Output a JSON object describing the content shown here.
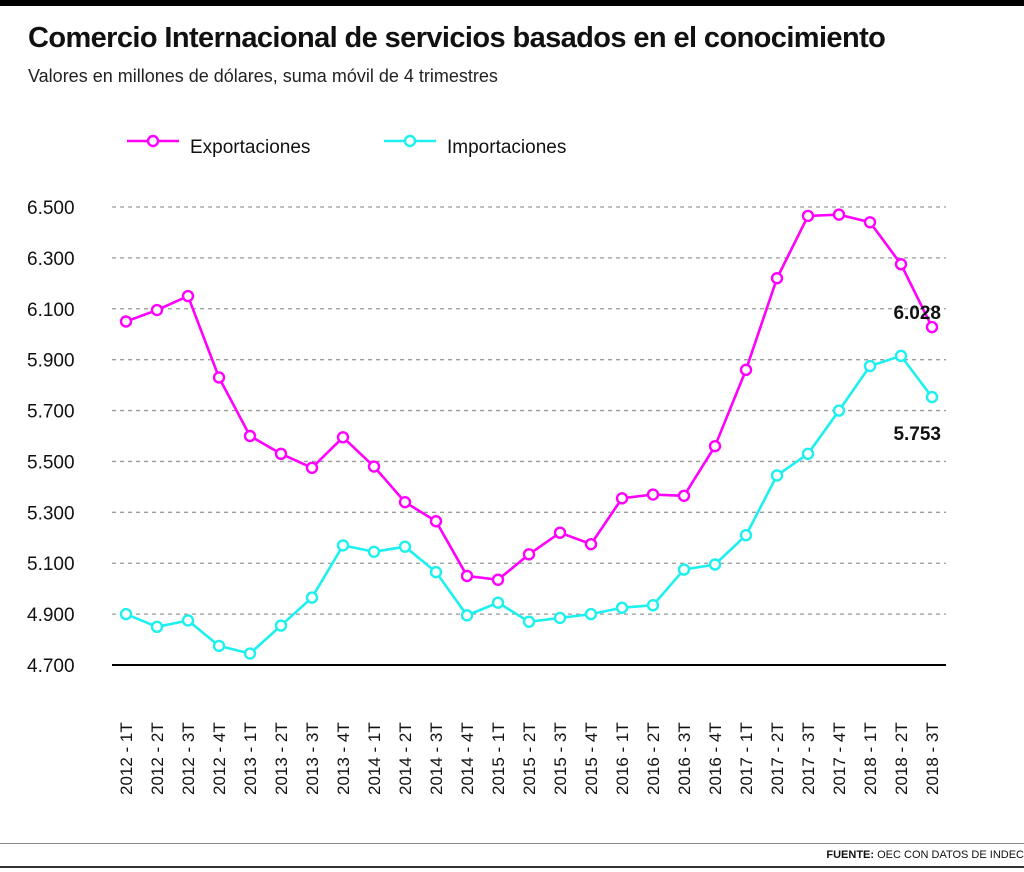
{
  "title": "Comercio Internacional de servicios basados en el conocimiento",
  "subtitle": "Valores en millones de dólares, suma móvil de 4 trimestres",
  "source_label": "FUENTE:",
  "source_text": "OEC CON DATOS DE INDEC",
  "colors": {
    "exportaciones": "#ff00ff",
    "importaciones": "#1ef0f0",
    "grid": "#9a9a9a",
    "axis": "#000000"
  },
  "chart_data": {
    "type": "line",
    "title": "Comercio Internacional de servicios basados en el conocimiento",
    "subtitle": "Valores en millones de dólares, suma móvil de 4 trimestres",
    "xlabel": "",
    "ylabel": "",
    "ylim": [
      4700,
      6500
    ],
    "yticks": [
      4700,
      4900,
      5100,
      5300,
      5500,
      5700,
      5900,
      6100,
      6300,
      6500
    ],
    "ytick_labels": [
      "4.700",
      "4.900",
      "5.100",
      "5.300",
      "5.500",
      "5.700",
      "5.900",
      "6.100",
      "6.300",
      "6.500"
    ],
    "grid": "horizontal dashed",
    "legend_position": "top-left",
    "categories": [
      "2012 - 1T",
      "2012 - 2T",
      "2012 - 3T",
      "2012 - 4T",
      "2013 - 1T",
      "2013 - 2T",
      "2013 - 3T",
      "2013 - 4T",
      "2014 - 1T",
      "2014 - 2T",
      "2014 - 3T",
      "2014 - 4T",
      "2015 - 1T",
      "2015 - 2T",
      "2015 - 3T",
      "2015 - 4T",
      "2016 - 1T",
      "2016 - 2T",
      "2016 - 3T",
      "2016 - 4T",
      "2017 - 1T",
      "2017 - 2T",
      "2017 - 3T",
      "2017 - 4T",
      "2018 - 1T",
      "2018 - 2T",
      "2018 - 3T"
    ],
    "series": [
      {
        "name": "Exportaciones",
        "color": "#ff00ff",
        "values": [
          6050,
          6095,
          6150,
          5830,
          5600,
          5530,
          5475,
          5595,
          5480,
          5340,
          5265,
          5050,
          5035,
          5135,
          5220,
          5175,
          5355,
          5370,
          5365,
          5560,
          5860,
          6220,
          6465,
          6470,
          6440,
          6275,
          6028
        ],
        "end_label": "6.028"
      },
      {
        "name": "Importaciones",
        "color": "#1ef0f0",
        "values": [
          4900,
          4850,
          4875,
          4775,
          4745,
          4855,
          4965,
          5170,
          5145,
          5165,
          5065,
          4895,
          4945,
          4870,
          4885,
          4900,
          4925,
          4935,
          5075,
          5095,
          5210,
          5445,
          5530,
          5700,
          5875,
          5915,
          5753
        ],
        "end_label": "5.753"
      }
    ]
  }
}
